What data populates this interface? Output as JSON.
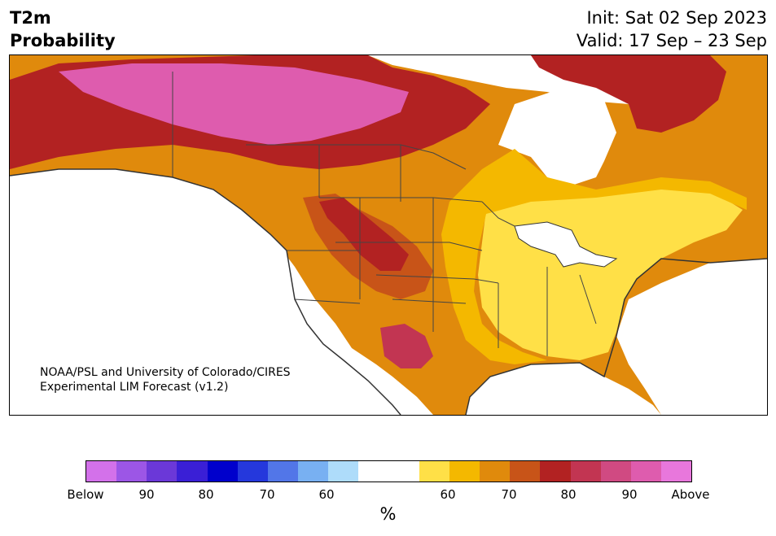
{
  "header": {
    "title_line1": "T2m",
    "title_line2": "Probability",
    "init": "Init: Sat 02 Sep 2023",
    "valid": "Valid: 17 Sep – 23 Sep"
  },
  "map": {
    "credit_line1": "NOAA/PSL and University of Colorado/CIRES",
    "credit_line2": "Experimental LIM Forecast (v1.2)"
  },
  "colorbar": {
    "colors": [
      "#d371ea",
      "#9c56e6",
      "#6b38d8",
      "#3a1fd6",
      "#0000cc",
      "#2538dc",
      "#5276e8",
      "#78b0f2",
      "#aedcfa",
      "#ffffff",
      "#ffffff",
      "#ffe047",
      "#f4b800",
      "#e08a0c",
      "#c85418",
      "#b22222",
      "#c23552",
      "#d04a82",
      "#de5cae",
      "#e877dc"
    ],
    "tick_labels": [
      "Below",
      "90",
      "80",
      "70",
      "60",
      "60",
      "70",
      "80",
      "90",
      "Above"
    ],
    "unit_label": "%"
  }
}
